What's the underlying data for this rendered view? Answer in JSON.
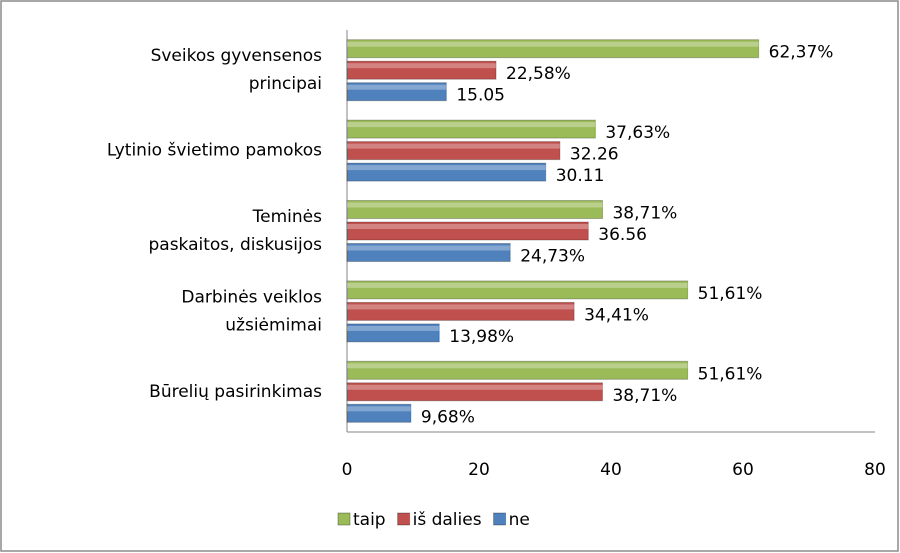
{
  "chart_data": {
    "type": "bar",
    "orientation": "horizontal",
    "categories": [
      [
        "Sveikos gyvensenos",
        "principai"
      ],
      [
        "Lytinio švietimo pamokos"
      ],
      [
        "Teminės",
        "paskaitos, diskusijos"
      ],
      [
        "Darbinės veiklos",
        "užsiėmimai"
      ],
      [
        "Būrelių pasirinkimas"
      ]
    ],
    "series": [
      {
        "name": "taip",
        "color": "#9bbb59",
        "values": [
          62.37,
          37.63,
          38.71,
          51.61,
          51.61
        ],
        "value_labels": [
          "62,37%",
          "37,63%",
          "38,71%",
          "51,61%",
          "51,61%"
        ]
      },
      {
        "name": "iš dalies",
        "color": "#c0504d",
        "values": [
          22.58,
          32.26,
          36.56,
          34.41,
          38.71
        ],
        "value_labels": [
          "22,58%",
          "32.26",
          "36.56",
          "34,41%",
          "38,71%"
        ]
      },
      {
        "name": "ne",
        "color": "#4f81bd",
        "values": [
          15.05,
          30.11,
          24.73,
          13.98,
          9.68
        ],
        "value_labels": [
          "15.05",
          "30.11",
          "24,73%",
          "13,98%",
          "9,68%"
        ]
      }
    ],
    "xlim": [
      0,
      80
    ],
    "xticks": [
      0,
      20,
      40,
      60,
      80
    ],
    "grid": false,
    "legend": "bottom"
  }
}
